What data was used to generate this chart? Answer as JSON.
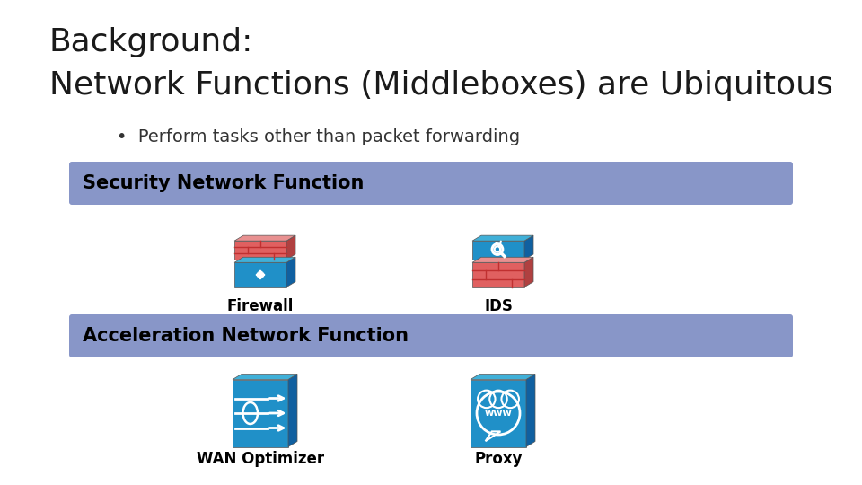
{
  "title_line1": "Background:",
  "title_line2": "Network Functions (Middleboxes) are Ubiquitous",
  "bullet": "•  Perform tasks other than packet forwarding",
  "section1_label": "Security Network Function",
  "section2_label": "Acceleration Network Function",
  "icon1_label": "Firewall",
  "icon2_label": "IDS",
  "icon3_label": "WAN Optimizer",
  "icon4_label": "Proxy",
  "bg_color": "#ffffff",
  "title_color": "#1a1a1a",
  "bullet_color": "#333333",
  "section_bg_color": "#8896c8",
  "section_text_color": "#000000",
  "icon_label_color": "#000000",
  "firewall_top_color": "#e06060",
  "firewall_bot_color": "#2090c8",
  "ids_top_color": "#2090c8",
  "ids_bot_color": "#e06060",
  "wan_color": "#2090c8",
  "proxy_color": "#2090c8",
  "brick_line_color": "#c03030",
  "icon_side_color": "#1070a0",
  "icon_top_color": "#40aad8"
}
